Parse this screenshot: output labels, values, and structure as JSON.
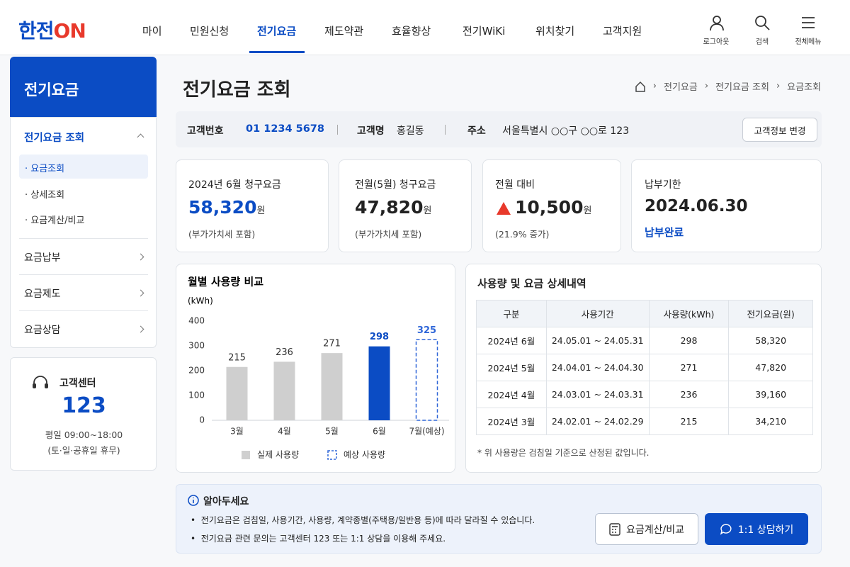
{
  "header": {
    "logo": {
      "main": "한전",
      "accent": "ON"
    },
    "nav": [
      "마이",
      "민원신청",
      "전기요금",
      "제도약관",
      "효율향상",
      "전기WiKi",
      "위치찾기",
      "고객지원"
    ],
    "utility": [
      "로그아웃",
      "검색",
      "전체메뉴"
    ]
  },
  "sidebar": {
    "title": "전기요금",
    "menu": [
      {
        "label": "전기요금 조회",
        "items": [
          "요금조회",
          "상세조회",
          "요금계산/비교"
        ]
      },
      {
        "label": "요금납부"
      },
      {
        "label": "요금제도"
      },
      {
        "label": "요금상담"
      }
    ],
    "support": {
      "title": "고객센터",
      "phone": "123",
      "hours": "평일 09:00~18:00",
      "closed": "(토·일·공휴일 휴무)"
    }
  },
  "page": {
    "title": "전기요금 조회",
    "breadcrumb": [
      "전기요금",
      "전기요금 조회",
      "요금조회"
    ]
  },
  "customer": {
    "fields": [
      {
        "label": "고객번호",
        "value": "01 1234 5678"
      },
      {
        "label": "고객명",
        "value": "홍길동"
      },
      {
        "label": "주소",
        "value": "서울특별시 ○○구 ○○로 123"
      }
    ],
    "button": "고객정보 변경"
  },
  "summary": [
    {
      "label": "2024년 6월 청구요금",
      "value": "58,320",
      "unit": "원",
      "note": "(부가가치세 포함)"
    },
    {
      "label": "전월(5월) 청구요금",
      "value": "47,820",
      "unit": "원",
      "note": "(부가가치세 포함)"
    },
    {
      "label": "전월 대비",
      "value": "10,500",
      "unit": "원",
      "note": "(21.9% 증가)"
    },
    {
      "label": "납부기한",
      "value": "2024.06.30",
      "note": "납부완료"
    }
  ],
  "usage_chart": {
    "type": "bar",
    "title": "월별 사용량 비교",
    "y_label": "(kWh)",
    "categories": [
      "3월",
      "4월",
      "5월",
      "6월",
      "7월(예상)"
    ],
    "series": [
      {
        "name": "실제 사용량",
        "color": "#cfcfcf",
        "colors": [
          "#cfcfcf",
          "#cfcfcf",
          "#cfcfcf",
          "#0b4cc4",
          null
        ],
        "values": [
          215,
          236,
          271,
          298,
          null
        ]
      },
      {
        "name": "예상 사용량",
        "color": "#2f66d8",
        "dashed": true,
        "values": [
          null,
          null,
          null,
          null,
          325
        ]
      }
    ],
    "ylim": [
      0,
      400
    ],
    "yticks": [
      0,
      100,
      200,
      300,
      400
    ]
  },
  "detail": {
    "title": "사용량 및 요금 상세내역",
    "table": {
      "columns": [
        "구분",
        "사용기간",
        "사용량(kWh)",
        "전기요금(원)"
      ],
      "rows": [
        [
          "2024년 6월",
          "24.05.01 ~ 24.05.31",
          298,
          "58,320"
        ],
        [
          "2024년 5월",
          "24.04.01 ~ 24.04.30",
          271,
          "47,820"
        ],
        [
          "2024년 4월",
          "24.03.01 ~ 24.03.31",
          236,
          "39,160"
        ],
        [
          "2024년 3월",
          "24.02.01 ~ 24.02.29",
          215,
          "34,210"
        ]
      ]
    },
    "footnote": "* 위 사용량은 검침일 기준으로 산정된 값입니다."
  },
  "notice": {
    "title": "알아두세요",
    "items": [
      "전기요금은 검침일, 사용기간, 사용량, 계약종별(주택용/일반용 등)에 따라 달라질 수 있습니다.",
      "전기요금 관련 문의는 고객센터 123 또는 1:1 상담을 이용해 주세요."
    ],
    "buttons": [
      "요금계산/비교",
      "1:1 상담하기"
    ]
  }
}
